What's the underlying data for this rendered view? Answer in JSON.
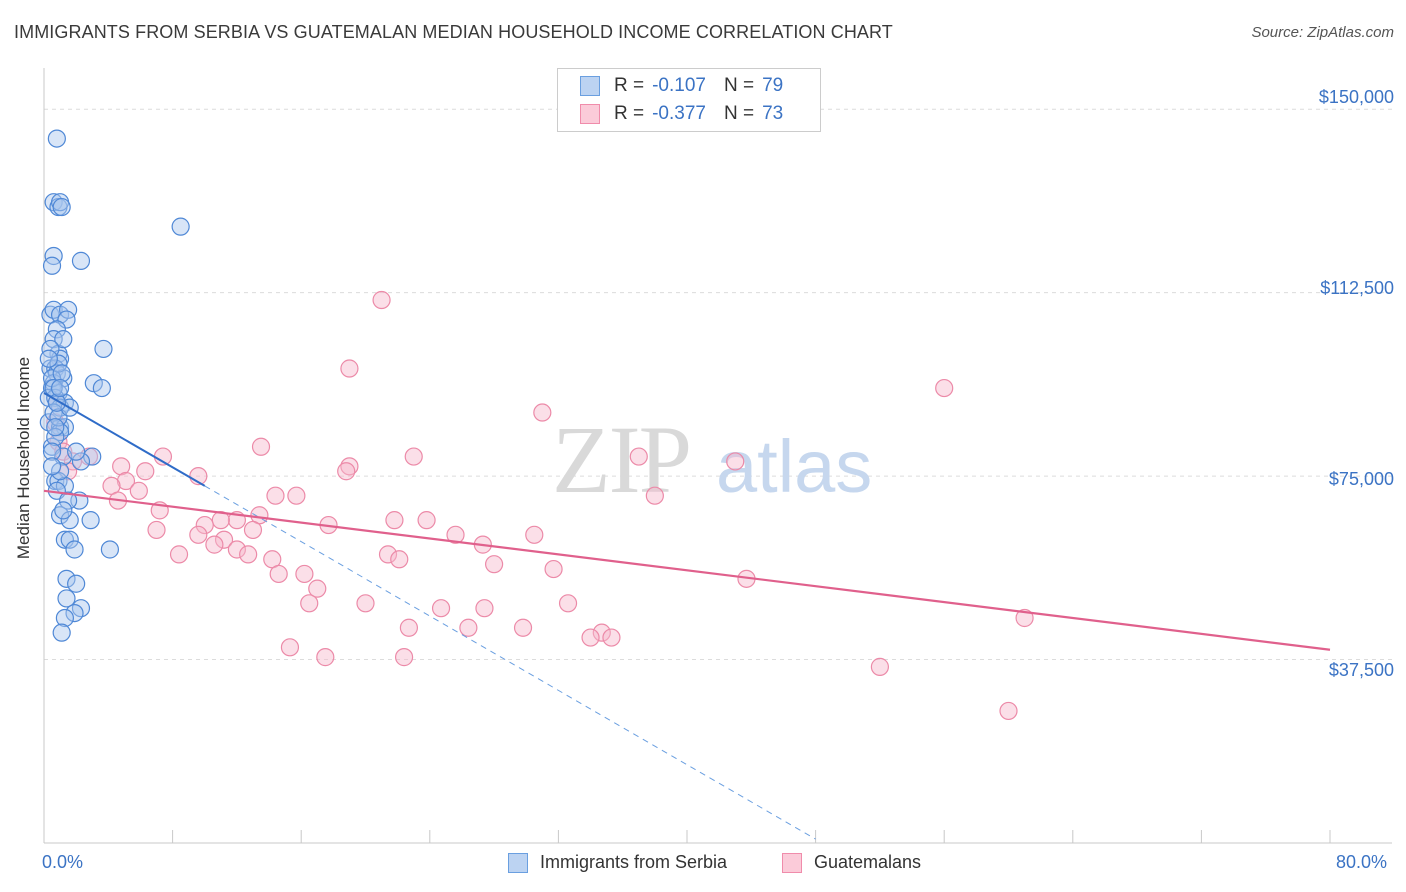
{
  "header": {
    "title": "IMMIGRANTS FROM SERBIA VS GUATEMALAN MEDIAN HOUSEHOLD INCOME CORRELATION CHART",
    "source": "Source: ZipAtlas.com"
  },
  "watermark": {
    "zip": "ZIP",
    "atlas": "atlas"
  },
  "legend_top": {
    "rows": [
      {
        "r_label": "R =",
        "r_value": "-0.107",
        "n_label": "N =",
        "n_value": "79",
        "color": "#6a9fe0"
      },
      {
        "r_label": "R =",
        "r_value": "-0.377",
        "n_label": "N =",
        "n_value": "73",
        "color": "#f08cab"
      }
    ]
  },
  "legend_bottom": {
    "items": [
      {
        "label": "Immigrants from Serbia",
        "color": "#6a9fe0"
      },
      {
        "label": "Guatemalans",
        "color": "#f08cab"
      }
    ]
  },
  "chart_data": {
    "type": "scatter",
    "title": "IMMIGRANTS FROM SERBIA VS GUATEMALAN MEDIAN HOUSEHOLD INCOME CORRELATION CHART",
    "xlabel": "",
    "ylabel": "Median Household Income",
    "xlim": [
      0,
      80
    ],
    "ylim": [
      0,
      157000
    ],
    "x_tick_labels": [
      "0.0%",
      "80.0%"
    ],
    "y_ticks": [
      37500,
      75000,
      112500,
      150000
    ],
    "y_tick_labels": [
      "$37,500",
      "$75,000",
      "$112,500",
      "$150,000"
    ],
    "grid": true,
    "series": [
      {
        "name": "Immigrants from Serbia",
        "color": "#6a9fe0",
        "trend": {
          "x0": 0,
          "y0": 92000,
          "x1": 10,
          "y1": 73000,
          "dashed_to_x": 48
        },
        "points": [
          [
            0.8,
            144000
          ],
          [
            0.6,
            131000
          ],
          [
            0.9,
            130000
          ],
          [
            1.0,
            131000
          ],
          [
            1.1,
            130000
          ],
          [
            8.5,
            126000
          ],
          [
            0.6,
            120000
          ],
          [
            0.5,
            118000
          ],
          [
            2.3,
            119000
          ],
          [
            0.4,
            108000
          ],
          [
            0.6,
            109000
          ],
          [
            1.0,
            108000
          ],
          [
            1.5,
            109000
          ],
          [
            1.4,
            107000
          ],
          [
            0.8,
            105000
          ],
          [
            0.6,
            103000
          ],
          [
            3.7,
            101000
          ],
          [
            0.9,
            100000
          ],
          [
            1.0,
            99000
          ],
          [
            0.4,
            97000
          ],
          [
            0.7,
            97000
          ],
          [
            0.8,
            96000
          ],
          [
            1.2,
            95000
          ],
          [
            0.6,
            94000
          ],
          [
            3.1,
            94000
          ],
          [
            3.6,
            93000
          ],
          [
            0.5,
            93000
          ],
          [
            0.9,
            92000
          ],
          [
            0.3,
            91000
          ],
          [
            0.7,
            91000
          ],
          [
            1.3,
            90000
          ],
          [
            1.0,
            89000
          ],
          [
            0.3,
            86000
          ],
          [
            1.0,
            85000
          ],
          [
            1.3,
            85000
          ],
          [
            1.0,
            84000
          ],
          [
            0.5,
            81000
          ],
          [
            1.2,
            79000
          ],
          [
            3.0,
            79000
          ],
          [
            2.3,
            78000
          ],
          [
            0.7,
            74000
          ],
          [
            0.9,
            74000
          ],
          [
            1.3,
            73000
          ],
          [
            2.2,
            70000
          ],
          [
            1.0,
            67000
          ],
          [
            1.6,
            66000
          ],
          [
            2.9,
            66000
          ],
          [
            1.3,
            62000
          ],
          [
            1.6,
            62000
          ],
          [
            1.9,
            60000
          ],
          [
            4.1,
            60000
          ],
          [
            1.4,
            54000
          ],
          [
            2.0,
            53000
          ],
          [
            1.4,
            50000
          ],
          [
            2.3,
            48000
          ],
          [
            1.9,
            47000
          ],
          [
            1.3,
            46000
          ],
          [
            1.1,
            43000
          ],
          [
            0.5,
            95000
          ],
          [
            0.6,
            88000
          ],
          [
            0.9,
            98000
          ],
          [
            1.2,
            103000
          ],
          [
            0.7,
            83000
          ],
          [
            0.5,
            80000
          ],
          [
            1.0,
            76000
          ],
          [
            0.8,
            72000
          ],
          [
            1.5,
            70000
          ],
          [
            0.6,
            93000
          ],
          [
            0.4,
            101000
          ],
          [
            0.9,
            87000
          ],
          [
            1.1,
            96000
          ],
          [
            0.3,
            99000
          ],
          [
            1.6,
            89000
          ],
          [
            0.7,
            85000
          ],
          [
            2.0,
            80000
          ],
          [
            0.5,
            77000
          ],
          [
            1.2,
            68000
          ],
          [
            0.8,
            90000
          ],
          [
            1.0,
            93000
          ]
        ]
      },
      {
        "name": "Guatemalans",
        "color": "#f08cab",
        "trend": {
          "x0": 0,
          "y0": 72000,
          "x1": 80,
          "y1": 39500
        },
        "points": [
          [
            21,
            111000
          ],
          [
            19,
            97000
          ],
          [
            56,
            93000
          ],
          [
            31,
            88000
          ],
          [
            0.7,
            86000
          ],
          [
            0.9,
            82000
          ],
          [
            13.5,
            81000
          ],
          [
            1.2,
            80000
          ],
          [
            2.8,
            79000
          ],
          [
            7.4,
            79000
          ],
          [
            23,
            79000
          ],
          [
            37,
            79000
          ],
          [
            43,
            78000
          ],
          [
            1.8,
            78000
          ],
          [
            19,
            77000
          ],
          [
            4.8,
            77000
          ],
          [
            6.3,
            76000
          ],
          [
            9.6,
            75000
          ],
          [
            18.8,
            76000
          ],
          [
            5.1,
            74000
          ],
          [
            4.2,
            73000
          ],
          [
            1.5,
            76000
          ],
          [
            5.9,
            72000
          ],
          [
            14.4,
            71000
          ],
          [
            15.7,
            71000
          ],
          [
            38,
            71000
          ],
          [
            4.6,
            70000
          ],
          [
            7.2,
            68000
          ],
          [
            13.4,
            67000
          ],
          [
            12,
            66000
          ],
          [
            11,
            66000
          ],
          [
            21.8,
            66000
          ],
          [
            23.8,
            66000
          ],
          [
            10,
            65000
          ],
          [
            17.7,
            65000
          ],
          [
            13,
            64000
          ],
          [
            9.6,
            63000
          ],
          [
            7,
            64000
          ],
          [
            30.5,
            63000
          ],
          [
            25.6,
            63000
          ],
          [
            11.2,
            62000
          ],
          [
            10.6,
            61000
          ],
          [
            27.3,
            61000
          ],
          [
            12,
            60000
          ],
          [
            12.7,
            59000
          ],
          [
            21.4,
            59000
          ],
          [
            8.4,
            59000
          ],
          [
            14.2,
            58000
          ],
          [
            22.1,
            58000
          ],
          [
            28,
            57000
          ],
          [
            31.7,
            56000
          ],
          [
            16.2,
            55000
          ],
          [
            14.6,
            55000
          ],
          [
            43.7,
            54000
          ],
          [
            17,
            52000
          ],
          [
            20,
            49000
          ],
          [
            32.6,
            49000
          ],
          [
            16.5,
            49000
          ],
          [
            24.7,
            48000
          ],
          [
            27.4,
            48000
          ],
          [
            22.7,
            44000
          ],
          [
            26.4,
            44000
          ],
          [
            29.8,
            44000
          ],
          [
            34.7,
            43000
          ],
          [
            35.3,
            42000
          ],
          [
            15.3,
            40000
          ],
          [
            34,
            42000
          ],
          [
            52,
            36000
          ],
          [
            61,
            46000
          ],
          [
            60,
            27000
          ],
          [
            17.5,
            38000
          ],
          [
            22.4,
            38000
          ],
          [
            0.8,
            90000
          ]
        ]
      }
    ]
  }
}
